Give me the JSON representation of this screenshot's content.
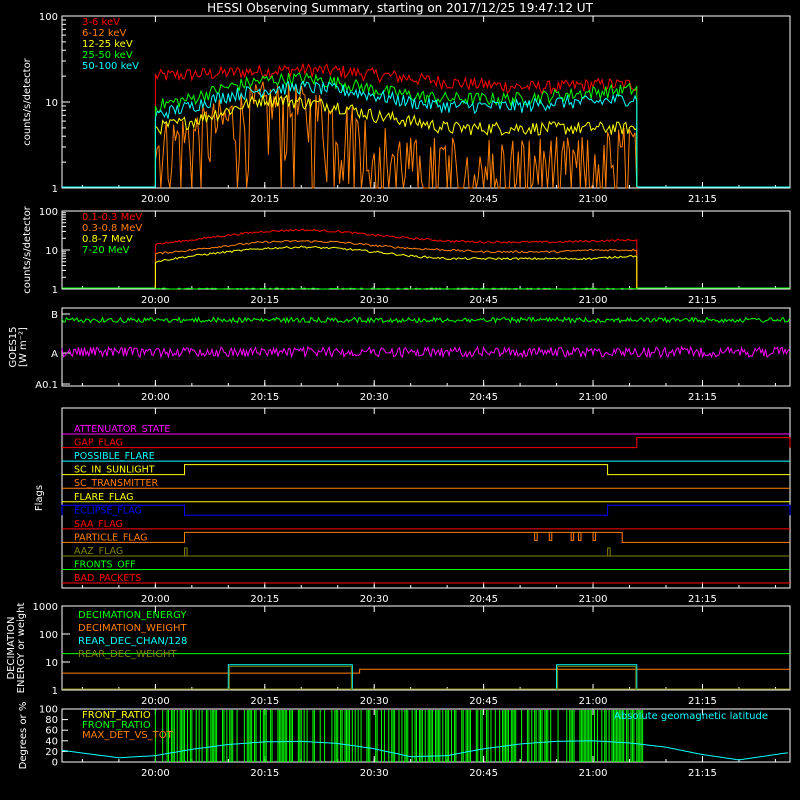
{
  "title": "HESSI Observing Summary, starting on 2017/12/25 19:47:12 UT",
  "chart_data": [
    {
      "type": "line",
      "panel": "rates_low",
      "ylabel": "counts/s/detector",
      "yscale": "log",
      "ylim": [
        1,
        100
      ],
      "yticks": [
        "1",
        "10",
        "100"
      ],
      "xlim": [
        "19:47:12",
        "21:27"
      ],
      "xticks": [
        "20:00",
        "20:15",
        "20:30",
        "20:45",
        "21:00",
        "21:15"
      ],
      "data_range": [
        "20:00",
        "21:06"
      ],
      "series": [
        {
          "name": "3-6 keV",
          "color": "#ff0000",
          "x": [
            "20:00",
            "20:05",
            "20:10",
            "20:15",
            "20:20",
            "20:25",
            "20:30",
            "20:35",
            "20:40",
            "20:45",
            "20:50",
            "20:55",
            "21:00",
            "21:05"
          ],
          "values": [
            20,
            21,
            22,
            23,
            24,
            23,
            21,
            19,
            17,
            16,
            15,
            15,
            16,
            16
          ]
        },
        {
          "name": "6-12 keV",
          "color": "#ff7f00",
          "x": [
            "20:00",
            "20:05",
            "20:10",
            "20:15",
            "20:20",
            "20:25",
            "20:30",
            "20:35",
            "20:40",
            "20:45",
            "20:50",
            "20:55",
            "21:00",
            "21:05"
          ],
          "values": [
            3,
            4,
            6,
            9,
            8,
            6,
            3,
            2,
            2,
            2,
            2,
            2,
            2,
            3
          ]
        },
        {
          "name": "12-25 keV",
          "color": "#ffff00",
          "x": [
            "20:00",
            "20:05",
            "20:10",
            "20:15",
            "20:20",
            "20:25",
            "20:30",
            "20:35",
            "20:40",
            "20:45",
            "20:50",
            "20:55",
            "21:00",
            "21:05"
          ],
          "values": [
            5,
            6,
            8,
            11,
            10,
            9,
            7,
            6,
            5,
            5,
            5,
            5,
            5,
            5
          ]
        },
        {
          "name": "25-50 keV",
          "color": "#00ff00",
          "x": [
            "20:00",
            "20:05",
            "20:10",
            "20:15",
            "20:20",
            "20:25",
            "20:30",
            "20:35",
            "20:40",
            "20:45",
            "20:50",
            "20:55",
            "21:00",
            "21:05"
          ],
          "values": [
            9,
            11,
            15,
            18,
            19,
            17,
            14,
            12,
            11,
            11,
            11,
            12,
            13,
            14
          ]
        },
        {
          "name": "50-100 keV",
          "color": "#00ffff",
          "x": [
            "20:00",
            "20:05",
            "20:10",
            "20:15",
            "20:20",
            "20:25",
            "20:30",
            "20:35",
            "20:40",
            "20:45",
            "20:50",
            "20:55",
            "21:00",
            "21:05"
          ],
          "values": [
            7,
            9,
            12,
            14,
            15,
            14,
            12,
            10,
            9,
            9,
            9,
            10,
            10,
            11
          ]
        }
      ]
    },
    {
      "type": "line",
      "panel": "rates_high",
      "ylabel": "counts/s/detector",
      "yscale": "log",
      "ylim": [
        1,
        100
      ],
      "yticks": [
        "1",
        "10",
        "100"
      ],
      "xlim": [
        "19:47:12",
        "21:27"
      ],
      "xticks": [
        "20:00",
        "20:15",
        "20:30",
        "20:45",
        "21:00",
        "21:15"
      ],
      "data_range": [
        "20:00",
        "21:06"
      ],
      "series": [
        {
          "name": "0.1-0.3 MeV",
          "color": "#ff0000",
          "x": [
            "20:00",
            "20:05",
            "20:10",
            "20:15",
            "20:20",
            "20:25",
            "20:30",
            "20:35",
            "20:40",
            "20:45",
            "20:50",
            "20:55",
            "21:00",
            "21:05"
          ],
          "values": [
            14,
            18,
            24,
            30,
            33,
            30,
            24,
            20,
            17,
            16,
            16,
            16,
            17,
            18
          ]
        },
        {
          "name": "0.3-0.8 MeV",
          "color": "#ff7f00",
          "x": [
            "20:00",
            "20:05",
            "20:10",
            "20:15",
            "20:20",
            "20:25",
            "20:30",
            "20:35",
            "20:40",
            "20:45",
            "20:50",
            "20:55",
            "21:00",
            "21:05"
          ],
          "values": [
            8,
            10,
            13,
            16,
            17,
            16,
            13,
            11,
            10,
            9,
            9,
            9,
            10,
            10
          ]
        },
        {
          "name": "0.8-7 MeV",
          "color": "#ffff00",
          "x": [
            "20:00",
            "20:05",
            "20:10",
            "20:15",
            "20:20",
            "20:25",
            "20:30",
            "20:35",
            "20:40",
            "20:45",
            "20:50",
            "20:55",
            "21:00",
            "21:05"
          ],
          "values": [
            5,
            7,
            9,
            11,
            12,
            11,
            9,
            7,
            6,
            6,
            6,
            6,
            6,
            7
          ]
        },
        {
          "name": "7-20 MeV",
          "color": "#00ff00",
          "x": [
            "20:00",
            "21:05"
          ],
          "values": [
            1,
            1
          ]
        }
      ]
    },
    {
      "type": "line",
      "panel": "goes",
      "ylabel": "GOES15",
      "ylabel2": "[W m⁻²]",
      "yscale": "log",
      "yticks": [
        "B",
        "A",
        "A0.1"
      ],
      "xlim": [
        "19:47:12",
        "21:27"
      ],
      "xticks": [
        "20:00",
        "20:15",
        "20:30",
        "20:45",
        "21:00",
        "21:15"
      ],
      "series": [
        {
          "name": "GOES long",
          "color": "#00ff00",
          "level": "B"
        },
        {
          "name": "GOES short",
          "color": "#ff00ff",
          "level": "A"
        }
      ]
    },
    {
      "type": "line",
      "panel": "flags",
      "ylabel": "Flags",
      "xlim": [
        "19:47:12",
        "21:27"
      ],
      "xticks": [
        "20:00",
        "20:15",
        "20:30",
        "20:45",
        "21:00",
        "21:15"
      ],
      "flags": [
        {
          "name": "ATTENUATOR_STATE",
          "color": "#ff00ff",
          "high": []
        },
        {
          "name": "GAP_FLAG",
          "color": "#ff0000",
          "high": [
            [
              "21:06",
              "21:27"
            ]
          ]
        },
        {
          "name": "POSSIBLE_FLARE",
          "color": "#00ffff",
          "high": []
        },
        {
          "name": "SC_IN_SUNLIGHT",
          "color": "#ffff00",
          "high": [
            [
              "20:04",
              "21:02"
            ]
          ]
        },
        {
          "name": "SC_TRANSMITTER",
          "color": "#ff7f00",
          "high": []
        },
        {
          "name": "FLARE_FLAG",
          "color": "#ffff00",
          "high": []
        },
        {
          "name": "ECLIPSE_FLAG",
          "color": "#0000ff",
          "high": [
            [
              "19:47:12",
              "20:04"
            ],
            [
              "21:02",
              "21:27"
            ]
          ]
        },
        {
          "name": "SAA_FLAG",
          "color": "#ff0000",
          "high": []
        },
        {
          "name": "PARTICLE_FLAG",
          "color": "#ff7f00",
          "high": [
            [
              "20:04",
              "21:04"
            ]
          ],
          "spikes": [
            "20:52",
            "20:54",
            "20:57",
            "20:58",
            "21:00"
          ]
        },
        {
          "name": "AAZ_FLAG",
          "color": "#808000",
          "high": [],
          "spikes": [
            "20:04",
            "21:02"
          ]
        },
        {
          "name": "FRONTS_OFF",
          "color": "#00ff00",
          "high": []
        },
        {
          "name": "BAD_PACKETS",
          "color": "#ff0000",
          "high": []
        }
      ]
    },
    {
      "type": "line",
      "panel": "decimation",
      "ylabel": "DECIMATION",
      "ylabel2": "ENERGY or weight",
      "yscale": "log",
      "ylim": [
        1,
        1000
      ],
      "yticks": [
        "1",
        "10",
        "100",
        "1000"
      ],
      "xlim": [
        "19:47:12",
        "21:27"
      ],
      "xticks": [
        "20:00",
        "20:15",
        "20:30",
        "20:45",
        "21:00",
        "21:15"
      ],
      "series": [
        {
          "name": "DECIMATION_ENERGY",
          "color": "#00ff00",
          "value": 20
        },
        {
          "name": "DECIMATION_WEIGHT",
          "color": "#ff7f00",
          "value": 4
        },
        {
          "name": "REAR_DEC_CHAN/128",
          "color": "#00ffff",
          "value": 8
        },
        {
          "name": "REAR_DEC_WEIGHT",
          "color": "#808000",
          "value": 1
        }
      ]
    },
    {
      "type": "line",
      "panel": "ratios",
      "ylabel": "Degrees or %",
      "ylim": [
        0,
        100
      ],
      "yticks": [
        "0",
        "20",
        "40",
        "60",
        "80",
        "100"
      ],
      "xlim": [
        "19:47:12",
        "21:27"
      ],
      "xticks": [
        "20:00",
        "20:15",
        "20:30",
        "20:45",
        "21:00",
        "21:15"
      ],
      "series": [
        {
          "name": "FRONT_RATIO",
          "color": "#ffff00"
        },
        {
          "name": "FRONT_RATIO",
          "color": "#00ff00"
        },
        {
          "name": "MAX_DET_VS_TOT",
          "color": "#ff7f00"
        },
        {
          "name": "Absolute geomagnetic latitude",
          "color": "#00ffff",
          "x": [
            "19:47:12",
            "19:55",
            "20:00",
            "20:05",
            "20:10",
            "20:15",
            "20:20",
            "20:25",
            "20:30",
            "20:35",
            "20:40",
            "20:45",
            "20:50",
            "20:55",
            "21:00",
            "21:05",
            "21:10",
            "21:15",
            "21:20",
            "21:27"
          ],
          "values": [
            22,
            8,
            12,
            24,
            33,
            38,
            39,
            35,
            25,
            10,
            12,
            25,
            34,
            39,
            40,
            36,
            28,
            14,
            4,
            18
          ]
        }
      ]
    }
  ]
}
